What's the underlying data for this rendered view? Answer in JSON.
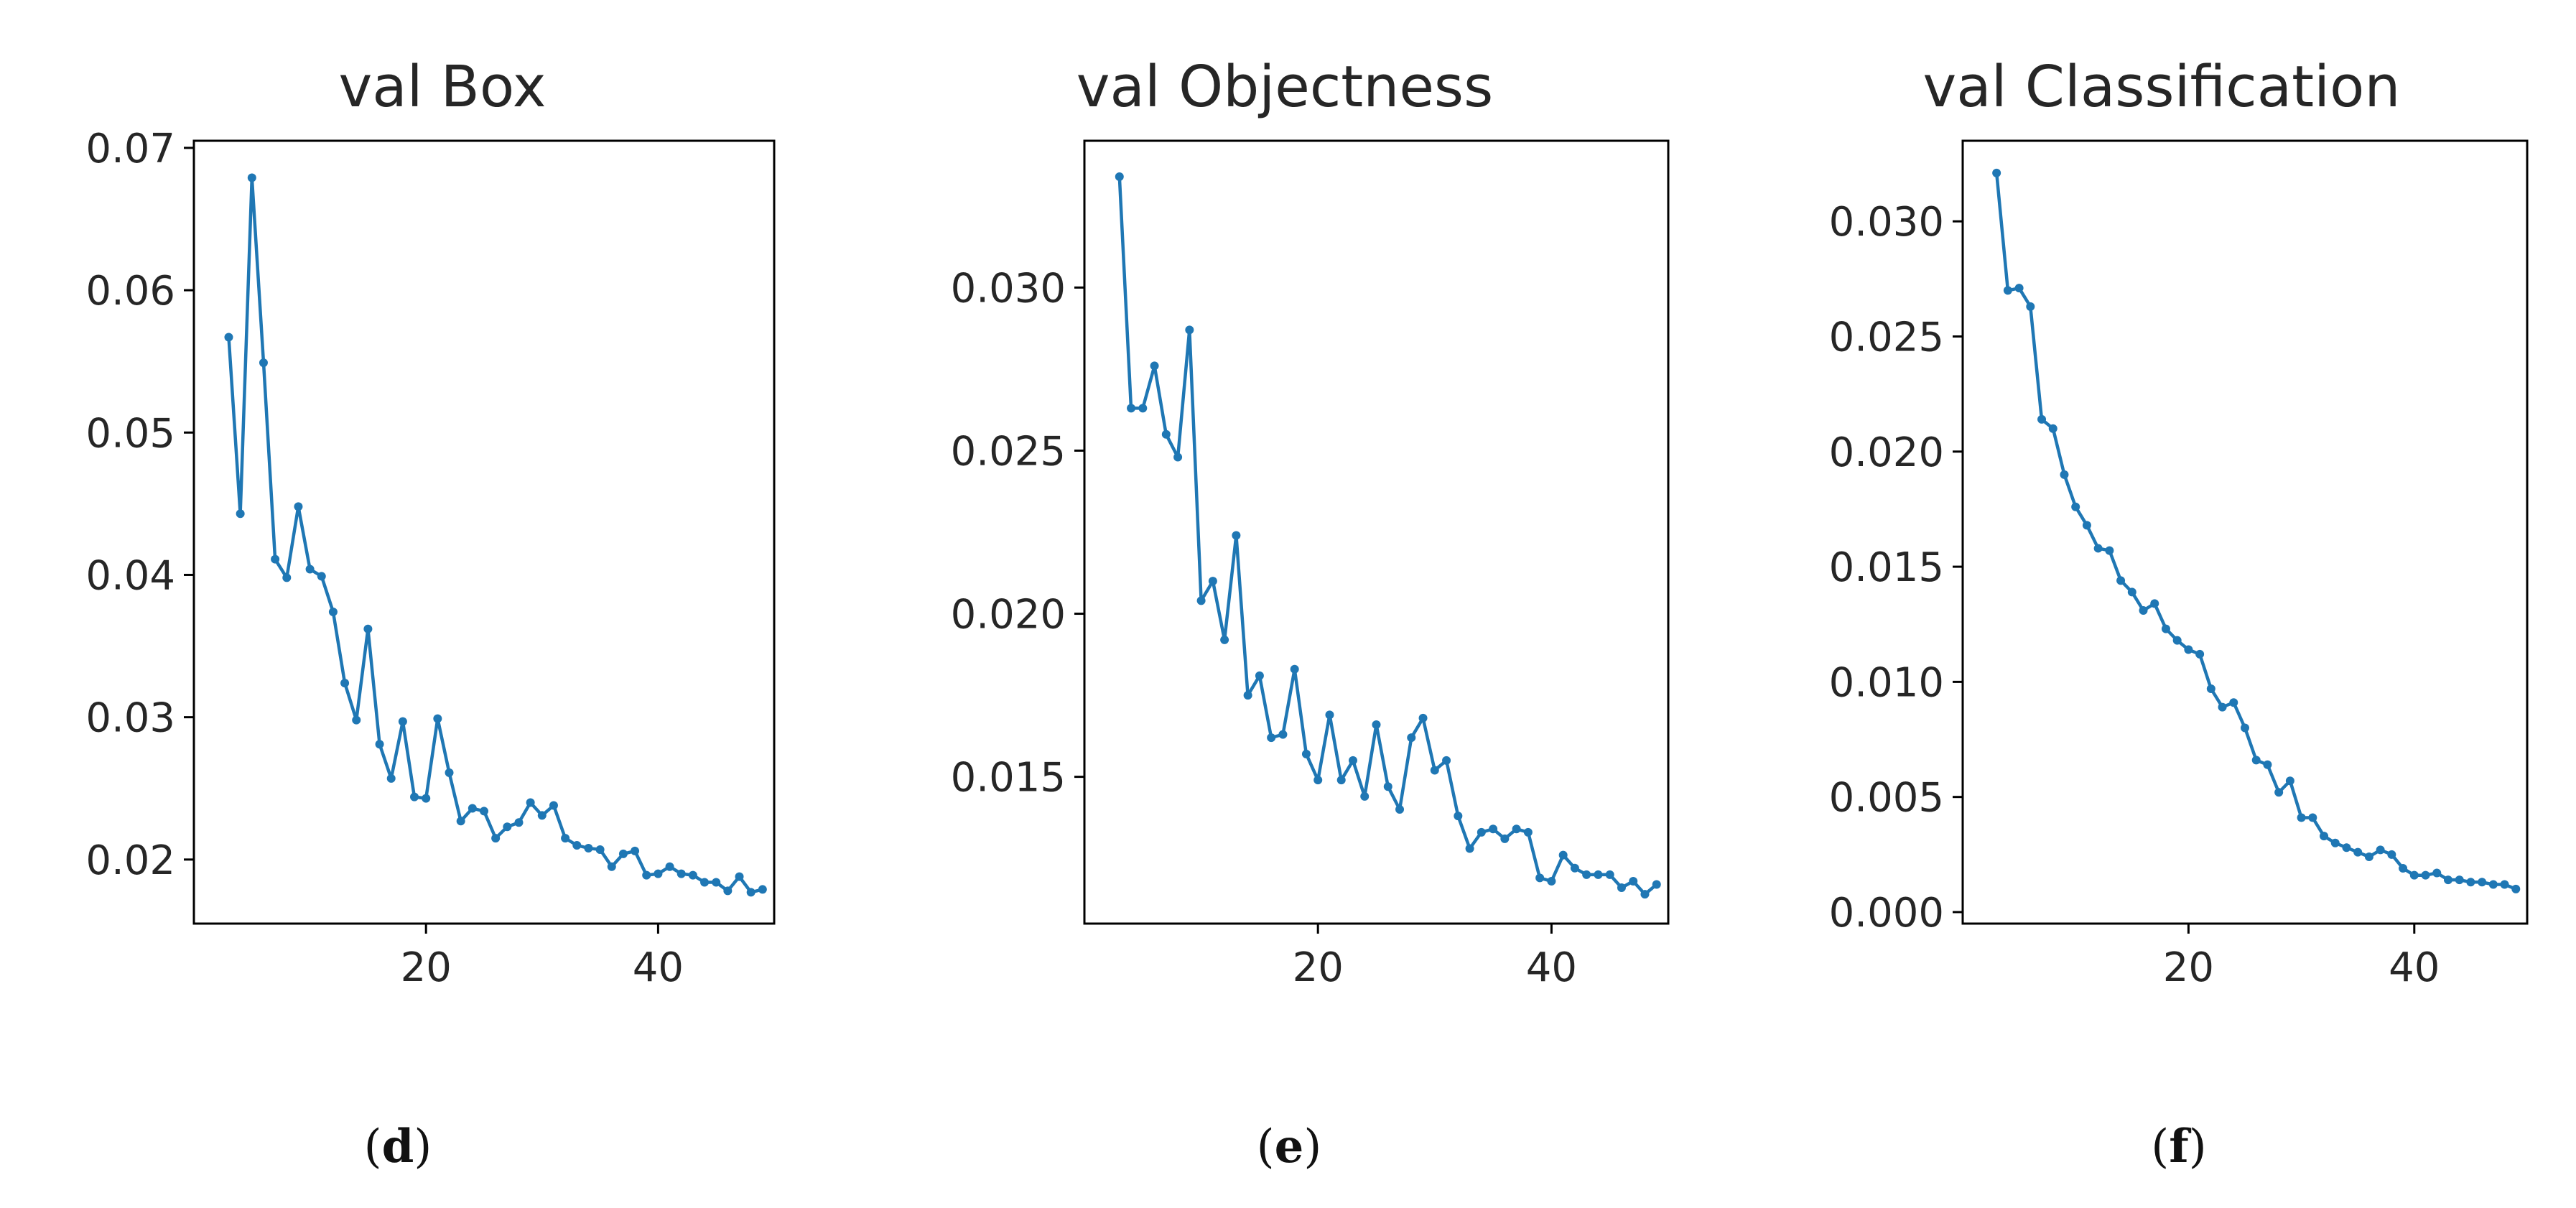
{
  "colors": {
    "line": "#1f77b4",
    "axis": "#000000",
    "text": "#262626"
  },
  "chart_data": [
    {
      "type": "line",
      "title": "val Box",
      "panel_letter": "d",
      "xlabel": "",
      "ylabel": "",
      "xlim": [
        0,
        50
      ],
      "ylim": [
        0.0155,
        0.0705
      ],
      "xticks": [
        20,
        40
      ],
      "xtick_labels": [
        "20",
        "40"
      ],
      "yticks": [
        0.02,
        0.03,
        0.04,
        0.05,
        0.06,
        0.07
      ],
      "ytick_labels": [
        "0.02",
        "0.03",
        "0.04",
        "0.05",
        "0.06",
        "0.07"
      ],
      "grid": false,
      "series": [
        {
          "name": "val Box",
          "x": [
            3,
            4,
            5,
            6,
            7,
            8,
            9,
            10,
            11,
            12,
            13,
            14,
            15,
            16,
            17,
            18,
            19,
            20,
            21,
            22,
            23,
            24,
            25,
            26,
            27,
            28,
            29,
            30,
            31,
            32,
            33,
            34,
            35,
            36,
            37,
            38,
            39,
            40,
            41,
            42,
            43,
            44,
            45,
            46,
            47,
            48,
            49
          ],
          "values": [
            0.0567,
            0.0443,
            0.0679,
            0.0549,
            0.0411,
            0.0398,
            0.0448,
            0.0404,
            0.0399,
            0.0374,
            0.0324,
            0.0298,
            0.0362,
            0.0281,
            0.0257,
            0.0297,
            0.0244,
            0.0243,
            0.0299,
            0.0261,
            0.0227,
            0.0236,
            0.0234,
            0.0215,
            0.0223,
            0.0226,
            0.024,
            0.0231,
            0.0238,
            0.0215,
            0.021,
            0.0208,
            0.0207,
            0.0195,
            0.0204,
            0.0206,
            0.0189,
            0.019,
            0.0195,
            0.019,
            0.0189,
            0.0184,
            0.0184,
            0.0178,
            0.0188,
            0.0177,
            0.0179
          ]
        }
      ]
    },
    {
      "type": "line",
      "title": "val Objectness",
      "panel_letter": "e",
      "xlabel": "",
      "ylabel": "",
      "xlim": [
        0,
        50
      ],
      "ylim": [
        0.0105,
        0.0345
      ],
      "xticks": [
        20,
        40
      ],
      "xtick_labels": [
        "20",
        "40"
      ],
      "yticks": [
        0.015,
        0.02,
        0.025,
        0.03
      ],
      "ytick_labels": [
        "0.015",
        "0.020",
        "0.025",
        "0.030"
      ],
      "grid": false,
      "series": [
        {
          "name": "val Objectness",
          "x": [
            3,
            4,
            5,
            6,
            7,
            8,
            9,
            10,
            11,
            12,
            13,
            14,
            15,
            16,
            17,
            18,
            19,
            20,
            21,
            22,
            23,
            24,
            25,
            26,
            27,
            28,
            29,
            30,
            31,
            32,
            33,
            34,
            35,
            36,
            37,
            38,
            39,
            40,
            41,
            42,
            43,
            44,
            45,
            46,
            47,
            48,
            49
          ],
          "values": [
            0.0334,
            0.0263,
            0.0263,
            0.0276,
            0.0255,
            0.0248,
            0.0287,
            0.0204,
            0.021,
            0.0192,
            0.0224,
            0.0175,
            0.0181,
            0.0162,
            0.0163,
            0.0183,
            0.0157,
            0.0149,
            0.0169,
            0.0149,
            0.0155,
            0.0144,
            0.0166,
            0.0147,
            0.014,
            0.0162,
            0.0168,
            0.0152,
            0.0155,
            0.0138,
            0.0128,
            0.0133,
            0.0134,
            0.0131,
            0.0134,
            0.0133,
            0.0119,
            0.0118,
            0.0126,
            0.0122,
            0.012,
            0.012,
            0.012,
            0.0116,
            0.0118,
            0.0114,
            0.0117
          ]
        }
      ]
    },
    {
      "type": "line",
      "title": "val Classification",
      "panel_letter": "f",
      "xlabel": "",
      "ylabel": "",
      "xlim": [
        0,
        50
      ],
      "ylim": [
        -0.0005,
        0.0335
      ],
      "xticks": [
        20,
        40
      ],
      "xtick_labels": [
        "20",
        "40"
      ],
      "yticks": [
        0,
        0.005,
        0.01,
        0.015,
        0.02,
        0.025,
        0.03
      ],
      "ytick_labels": [
        "0.000",
        "0.005",
        "0.010",
        "0.015",
        "0.020",
        "0.025",
        "0.030"
      ],
      "grid": false,
      "series": [
        {
          "name": "val Classification",
          "x": [
            3,
            4,
            5,
            6,
            7,
            8,
            9,
            10,
            11,
            12,
            13,
            14,
            15,
            16,
            17,
            18,
            19,
            20,
            21,
            22,
            23,
            24,
            25,
            26,
            27,
            28,
            29,
            30,
            31,
            32,
            33,
            34,
            35,
            36,
            37,
            38,
            39,
            40,
            41,
            42,
            43,
            44,
            45,
            46,
            47,
            48,
            49
          ],
          "values": [
            0.0321,
            0.027,
            0.0271,
            0.0263,
            0.0214,
            0.021,
            0.019,
            0.0176,
            0.0168,
            0.0158,
            0.0157,
            0.0144,
            0.0139,
            0.0131,
            0.0134,
            0.0123,
            0.0118,
            0.0114,
            0.0112,
            0.0097,
            0.0089,
            0.0091,
            0.008,
            0.0066,
            0.0064,
            0.0052,
            0.0057,
            0.0041,
            0.0041,
            0.0033,
            0.003,
            0.0028,
            0.0026,
            0.0024,
            0.0027,
            0.0025,
            0.0019,
            0.0016,
            0.0016,
            0.0017,
            0.0014,
            0.0014,
            0.0013,
            0.0013,
            0.0012,
            0.0012,
            0.001
          ]
        }
      ]
    }
  ]
}
